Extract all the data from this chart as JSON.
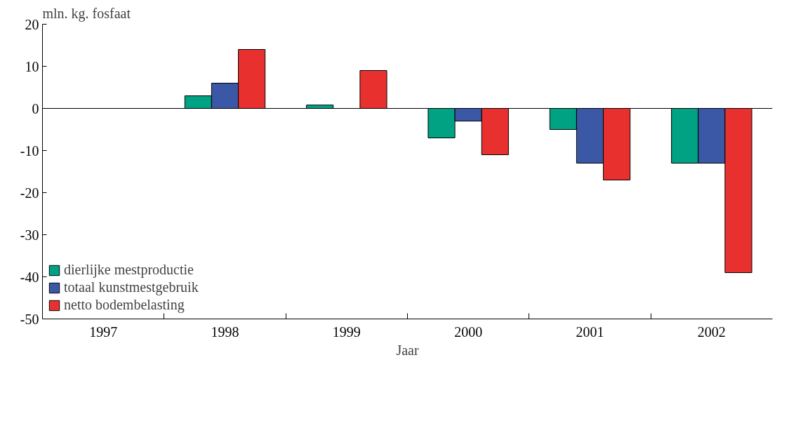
{
  "chart_data": {
    "type": "bar",
    "ylabel": "mln. kg. fosfaat",
    "xlabel": "Jaar",
    "categories": [
      "1997",
      "1998",
      "1999",
      "2000",
      "2001",
      "2002"
    ],
    "series": [
      {
        "name": "dierlijke mestproductie",
        "color": "#00a283",
        "values": [
          null,
          3,
          0.8,
          -7,
          -5,
          -13
        ]
      },
      {
        "name": "totaal kunstmestgebruik",
        "color": "#3b58a6",
        "values": [
          null,
          6,
          null,
          -3,
          -13,
          -13
        ]
      },
      {
        "name": "netto bodembelasting",
        "color": "#e8302f",
        "values": [
          null,
          14,
          9,
          -11,
          -17,
          -39
        ]
      }
    ],
    "ylim": [
      -50,
      20
    ],
    "yticks": [
      -50,
      -40,
      -30,
      -20,
      -10,
      0,
      10,
      20
    ],
    "ref_lines": [
      {
        "axis": "y",
        "value": 0
      }
    ],
    "grid": false,
    "legend": "bottom left"
  }
}
